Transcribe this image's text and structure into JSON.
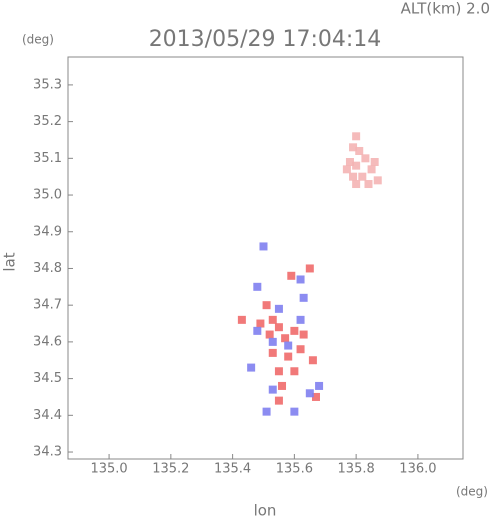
{
  "chart_data": {
    "type": "scatter",
    "annotation": "ALT(km)  2.0",
    "title": "2013/05/29 17:04:14",
    "y_unit": "(deg)",
    "x_unit": "(deg)",
    "x_label": "lon",
    "y_label": "lat",
    "xlim": [
      134.867,
      136.146
    ],
    "ylim": [
      34.281,
      35.376
    ],
    "xticks": [
      {
        "value": 135,
        "label": "135.0"
      },
      135.2,
      135.4,
      135.6,
      135.8,
      {
        "value": 136,
        "label": "136.0"
      }
    ],
    "yticks": [
      34.3,
      34.4,
      34.5,
      34.6,
      34.7,
      34.8,
      34.9,
      {
        "value": 35,
        "label": "35.0"
      },
      35.1,
      35.2,
      35.3
    ],
    "series": [
      {
        "color": "#f4b4b4",
        "x": [
          135.8,
          135.79,
          135.81,
          135.78,
          135.8,
          135.83,
          135.85,
          135.82,
          135.79,
          135.87,
          135.84,
          135.8,
          135.77,
          135.86
        ],
        "values": [
          35.16,
          35.13,
          35.12,
          35.09,
          35.08,
          35.1,
          35.07,
          35.05,
          35.05,
          35.04,
          35.03,
          35.03,
          35.07,
          35.09
        ]
      },
      {
        "color": "#f06a6a",
        "x": [
          135.51,
          135.53,
          135.55,
          135.52,
          135.57,
          135.6,
          135.58,
          135.55,
          135.56,
          135.62,
          135.67,
          135.59,
          135.65,
          135.63,
          135.49,
          135.6,
          135.55,
          135.43,
          135.53,
          135.66
        ],
        "values": [
          34.7,
          34.66,
          34.64,
          34.62,
          34.61,
          34.63,
          34.56,
          34.52,
          34.48,
          34.58,
          34.45,
          34.78,
          34.8,
          34.62,
          34.65,
          34.52,
          34.44,
          34.66,
          34.57,
          34.55
        ]
      },
      {
        "color": "#8080f0",
        "x": [
          135.5,
          135.53,
          135.48,
          135.62,
          135.63,
          135.68,
          135.6,
          135.51,
          135.53,
          135.58,
          135.55,
          135.62,
          135.46,
          135.65,
          135.48
        ],
        "values": [
          34.86,
          34.6,
          34.63,
          34.66,
          34.72,
          34.48,
          34.41,
          34.41,
          34.47,
          34.59,
          34.69,
          34.77,
          34.53,
          34.46,
          34.75
        ]
      }
    ]
  }
}
